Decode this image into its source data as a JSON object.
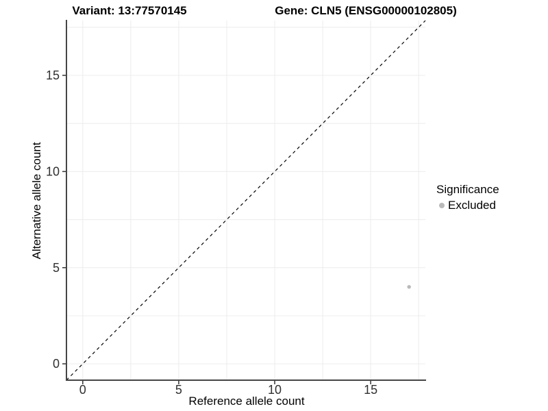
{
  "titles": {
    "variant": "Variant: 13:77570145",
    "gene": "Gene: CLN5 (ENSG00000102805)"
  },
  "chart_data": {
    "type": "scatter",
    "xlabel": "Reference allele count",
    "ylabel": "Alternative allele count",
    "xlim": [
      -0.85,
      17.85
    ],
    "ylim": [
      -0.85,
      17.85
    ],
    "x_ticks": [
      0,
      5,
      10,
      15
    ],
    "y_ticks": [
      0,
      5,
      10,
      15
    ],
    "x_minor_ticks": [
      2.5,
      7.5,
      12.5,
      17.5
    ],
    "y_minor_ticks": [
      2.5,
      7.5,
      12.5,
      17.5
    ],
    "grid": "major+minor",
    "series": [
      {
        "name": "Excluded",
        "color": "#b9b9b9",
        "points": [
          [
            17,
            4
          ]
        ]
      }
    ],
    "reference_line": {
      "kind": "identity y=x",
      "style": "dashed",
      "color": "#000000"
    },
    "legend": {
      "title": "Significance",
      "position": "right",
      "items": [
        {
          "label": "Excluded",
          "color": "#b9b9b9"
        }
      ]
    }
  },
  "colors": {
    "background": "#ffffff",
    "grid": "#ececec",
    "axis_line": "#454545",
    "tick_mark": "#333333",
    "tick_label": "#303030",
    "text": "#000000"
  }
}
